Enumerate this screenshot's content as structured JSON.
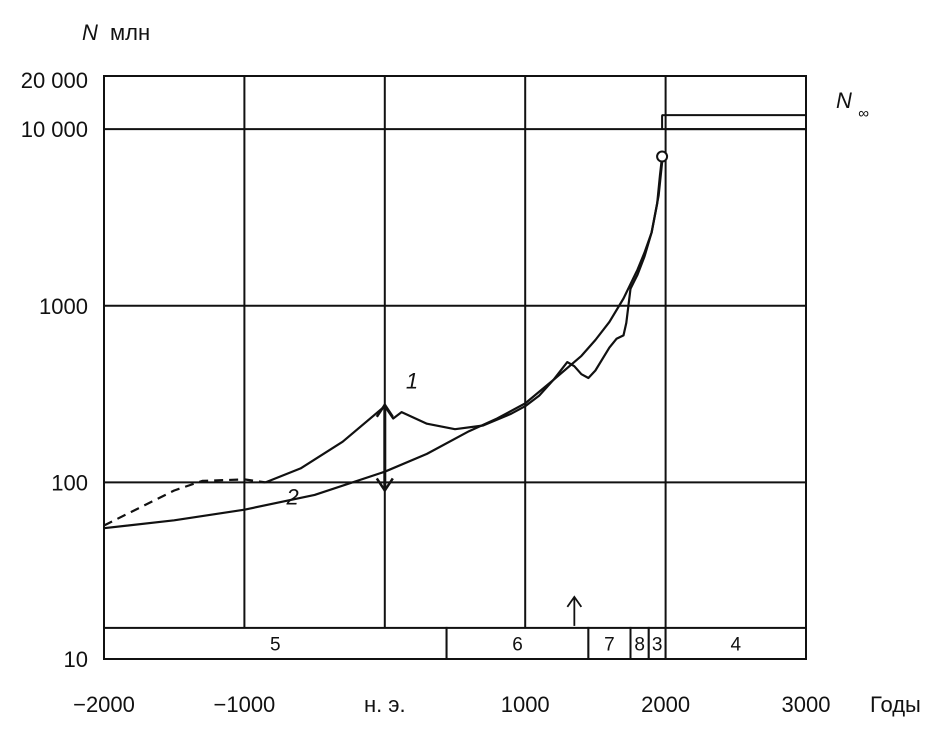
{
  "chart_data": {
    "type": "line",
    "yscale": "log",
    "xlim": [
      -2000,
      3000
    ],
    "ylim": [
      10,
      20000
    ],
    "ylabel_symbol": "N",
    "ylabel_unit": "млн",
    "xlabel": "Годы",
    "x_ticks": [
      {
        "value": -2000,
        "label": "−2000"
      },
      {
        "value": -1000,
        "label": "−1000"
      },
      {
        "value": 0,
        "label": "н. э."
      },
      {
        "value": 1000,
        "label": "1000"
      },
      {
        "value": 2000,
        "label": "2000"
      },
      {
        "value": 3000,
        "label": "3000"
      }
    ],
    "y_ticks": [
      {
        "value": 10,
        "label": "10"
      },
      {
        "value": 100,
        "label": "100"
      },
      {
        "value": 1000,
        "label": "1000"
      },
      {
        "value": 10000,
        "label": "10 000"
      },
      {
        "value": 20000,
        "label": "20 000"
      }
    ],
    "grid_x": [
      -1000,
      0,
      1000,
      2000
    ],
    "grid_y": [
      100,
      1000,
      10000
    ],
    "asymptote": {
      "label": "N",
      "subscript": "∞",
      "from_year": 2000,
      "values": [
        10000,
        12000
      ]
    },
    "series": [
      {
        "name": "1",
        "label_at": {
          "year": 150,
          "value": 340
        },
        "points": [
          [
            -850,
            100
          ],
          [
            -600,
            120
          ],
          [
            -300,
            170
          ],
          [
            0,
            270
          ],
          [
            60,
            230
          ],
          [
            120,
            250
          ],
          [
            300,
            215
          ],
          [
            500,
            200
          ],
          [
            700,
            210
          ],
          [
            900,
            245
          ],
          [
            1000,
            270
          ],
          [
            1100,
            310
          ],
          [
            1200,
            380
          ],
          [
            1300,
            480
          ],
          [
            1350,
            455
          ],
          [
            1400,
            410
          ],
          [
            1450,
            390
          ],
          [
            1500,
            430
          ],
          [
            1600,
            580
          ],
          [
            1650,
            650
          ],
          [
            1700,
            680
          ],
          [
            1720,
            800
          ],
          [
            1750,
            1250
          ],
          [
            1800,
            1500
          ],
          [
            1850,
            1900
          ],
          [
            1900,
            2600
          ],
          [
            1940,
            3800
          ],
          [
            1960,
            5500
          ],
          [
            1975,
            7000
          ]
        ]
      },
      {
        "name": "2",
        "label_at": {
          "year": -700,
          "value": 75
        },
        "points": [
          [
            -2000,
            55
          ],
          [
            -1500,
            61
          ],
          [
            -1000,
            70
          ],
          [
            -500,
            85
          ],
          [
            0,
            115
          ],
          [
            300,
            145
          ],
          [
            600,
            195
          ],
          [
            800,
            230
          ],
          [
            1000,
            280
          ],
          [
            1200,
            380
          ],
          [
            1400,
            520
          ],
          [
            1500,
            640
          ],
          [
            1600,
            810
          ],
          [
            1700,
            1100
          ],
          [
            1800,
            1600
          ],
          [
            1850,
            2000
          ],
          [
            1900,
            2600
          ],
          [
            1950,
            4200
          ],
          [
            1975,
            6500
          ]
        ]
      },
      {
        "name": "dashed",
        "style": "dashed",
        "points": [
          [
            -2000,
            57
          ],
          [
            -1700,
            75
          ],
          [
            -1500,
            90
          ],
          [
            -1300,
            102
          ],
          [
            -1000,
            104
          ],
          [
            -850,
            100
          ]
        ]
      }
    ],
    "marker": {
      "year": 1975,
      "value": 7000
    },
    "uncertainty_arrow": {
      "year": 0,
      "high": 275,
      "low": 90
    },
    "up_arrow_year": 1350,
    "eras": [
      {
        "label": "5",
        "start": -2000,
        "end": 440
      },
      {
        "label": "6",
        "start": 440,
        "end": 1450
      },
      {
        "label": "7",
        "start": 1450,
        "end": 1750
      },
      {
        "label": "8",
        "start": 1750,
        "end": 1880
      },
      {
        "label": "3",
        "start": 1880,
        "end": 2000
      },
      {
        "label": "4",
        "start": 2000,
        "end": 3000
      }
    ]
  }
}
